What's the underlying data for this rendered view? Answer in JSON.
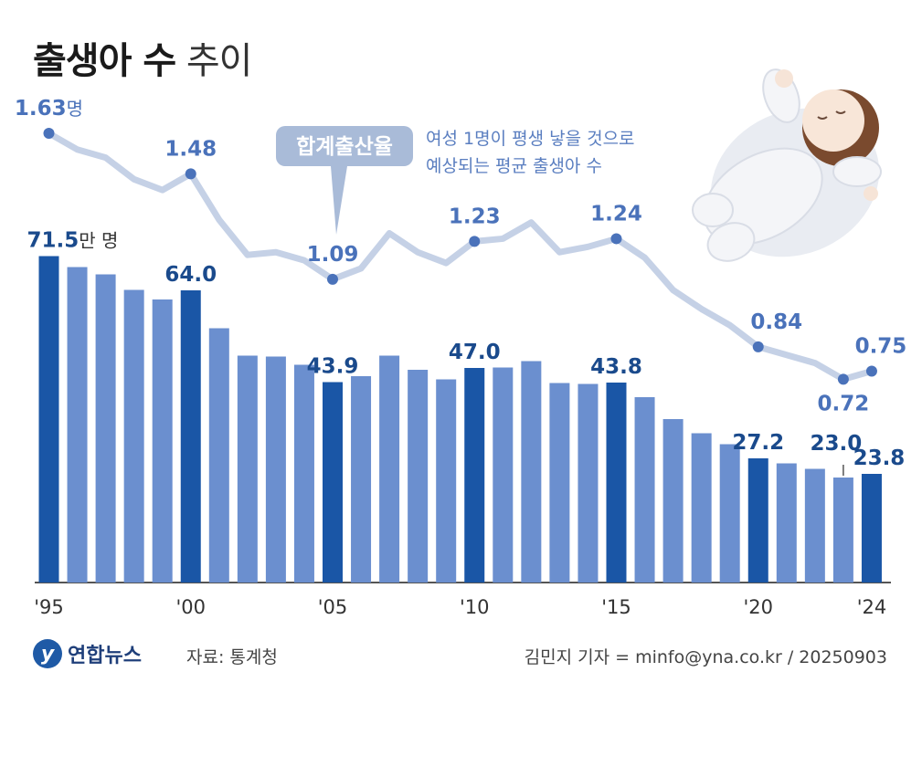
{
  "title": {
    "bold": "출생아 수",
    "light": "추이"
  },
  "callout": {
    "label": "합계출산율",
    "desc_line1": "여성 1명이 평생 낳을 것으로",
    "desc_line2": "예상되는 평균 출생아 수"
  },
  "units": {
    "births": "만 명",
    "tfr": "명"
  },
  "footer": {
    "logo_text": "연합뉴스",
    "source": "자료: 통계청",
    "credit": "김민지 기자 = minfo@yna.co.kr / 20250903"
  },
  "colors": {
    "bar_highlight": "#1a56a6",
    "bar_normal": "#6b8fcf",
    "line": "#c5d1e6",
    "tfr_label": "#4a72ba",
    "callout_bg": "#a9bbd8"
  },
  "chart_data": {
    "type": "bar",
    "categories": [
      "1995",
      "1996",
      "1997",
      "1998",
      "1999",
      "2000",
      "2001",
      "2002",
      "2003",
      "2004",
      "2005",
      "2006",
      "2007",
      "2008",
      "2009",
      "2010",
      "2011",
      "2012",
      "2013",
      "2014",
      "2015",
      "2016",
      "2017",
      "2018",
      "2019",
      "2020",
      "2021",
      "2022",
      "2023",
      "2024"
    ],
    "x_tick_labels": [
      "'95",
      "'00",
      "'05",
      "'10",
      "'15",
      "'20",
      "'24"
    ],
    "series": [
      {
        "name": "출생아 수",
        "unit": "만 명",
        "values": [
          71.5,
          69.1,
          67.5,
          64.1,
          62.0,
          64.0,
          55.7,
          49.7,
          49.5,
          47.7,
          43.9,
          45.2,
          49.7,
          46.6,
          44.5,
          47.0,
          47.1,
          48.5,
          43.7,
          43.5,
          43.8,
          40.6,
          35.8,
          32.7,
          30.3,
          27.2,
          26.1,
          24.9,
          23.0,
          23.8
        ],
        "labeled": {
          "1995": "71.5",
          "2000": "64.0",
          "2005": "43.9",
          "2010": "47.0",
          "2015": "43.8",
          "2020": "27.2",
          "2023": "23.0",
          "2024": "23.8"
        }
      },
      {
        "name": "합계출산율",
        "unit": "명",
        "type": "line",
        "values": [
          1.63,
          1.57,
          1.54,
          1.46,
          1.42,
          1.48,
          1.31,
          1.18,
          1.19,
          1.16,
          1.09,
          1.13,
          1.26,
          1.19,
          1.15,
          1.23,
          1.24,
          1.3,
          1.19,
          1.21,
          1.24,
          1.17,
          1.05,
          0.98,
          0.92,
          0.84,
          0.81,
          0.78,
          0.72,
          0.75
        ],
        "labeled": {
          "1995": "1.63",
          "2000": "1.48",
          "2005": "1.09",
          "2010": "1.23",
          "2015": "1.24",
          "2020": "0.84",
          "2023": "0.72",
          "2024": "0.75"
        }
      }
    ],
    "highlight_years": [
      "1995",
      "2000",
      "2005",
      "2010",
      "2015",
      "2020",
      "2024"
    ]
  }
}
